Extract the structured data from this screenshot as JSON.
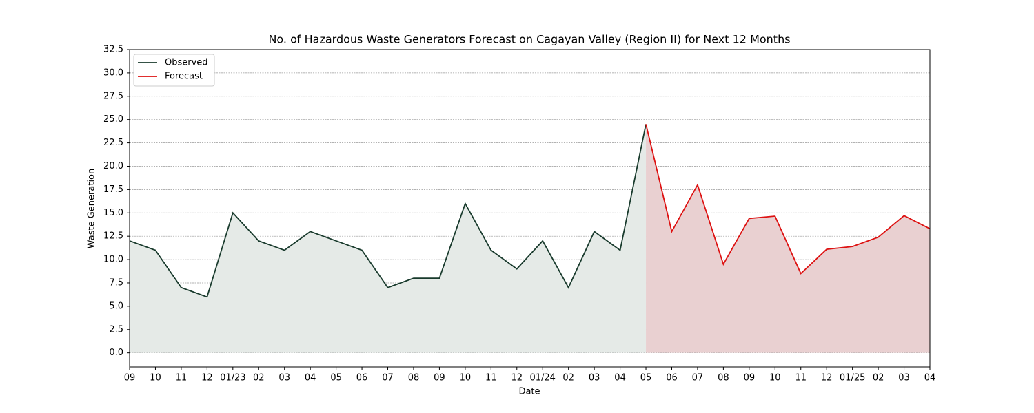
{
  "chart_data": {
    "type": "line",
    "title": "No. of Hazardous Waste Generators Forecast on Cagayan Valley (Region II) for Next 12 Months",
    "x_label": "Date",
    "y_label": "Waste Generation",
    "categories": [
      "09",
      "10",
      "11",
      "12",
      "01/23",
      "02",
      "03",
      "04",
      "05",
      "06",
      "07",
      "08",
      "09",
      "10",
      "11",
      "12",
      "01/24",
      "02",
      "03",
      "04",
      "05",
      "06",
      "07",
      "08",
      "09",
      "10",
      "11",
      "12",
      "01/25",
      "02",
      "03",
      "04"
    ],
    "series": [
      {
        "name": "Observed",
        "color": "#183a2c",
        "fill": "#e5eae7",
        "values": [
          12,
          11,
          7,
          6,
          15,
          12,
          11,
          13,
          12,
          11,
          7,
          8,
          8,
          16,
          11,
          9,
          12,
          7,
          13,
          11,
          24.5,
          null,
          null,
          null,
          null,
          null,
          null,
          null,
          null,
          null,
          null,
          null
        ]
      },
      {
        "name": "Forecast",
        "color": "#dd1111",
        "fill": "#e9d0d1",
        "values": [
          null,
          null,
          null,
          null,
          null,
          null,
          null,
          null,
          null,
          null,
          null,
          null,
          null,
          null,
          null,
          null,
          null,
          null,
          null,
          null,
          24.5,
          13,
          18,
          9.5,
          14.4,
          14.65,
          8.5,
          11.1,
          11.4,
          12.4,
          14.7,
          13.3
        ]
      }
    ],
    "ylim": [
      -1.5,
      32.5
    ],
    "yticks": [
      {
        "value": 0,
        "label": "0.0"
      },
      {
        "value": 2.5,
        "label": "2.5"
      },
      {
        "value": 5,
        "label": "5.0"
      },
      {
        "value": 7.5,
        "label": "7.5"
      },
      {
        "value": 10,
        "label": "10.0"
      },
      {
        "value": 12.5,
        "label": "12.5"
      },
      {
        "value": 15,
        "label": "15.0"
      },
      {
        "value": 17.5,
        "label": "17.5"
      },
      {
        "value": 20,
        "label": "20.0"
      },
      {
        "value": 22.5,
        "label": "22.5"
      },
      {
        "value": 25,
        "label": "25.0"
      },
      {
        "value": 27.5,
        "label": "27.5"
      },
      {
        "value": 30,
        "label": "30.0"
      },
      {
        "value": 32.5,
        "label": "32.5"
      }
    ],
    "grid": true,
    "legend": "upper left"
  }
}
